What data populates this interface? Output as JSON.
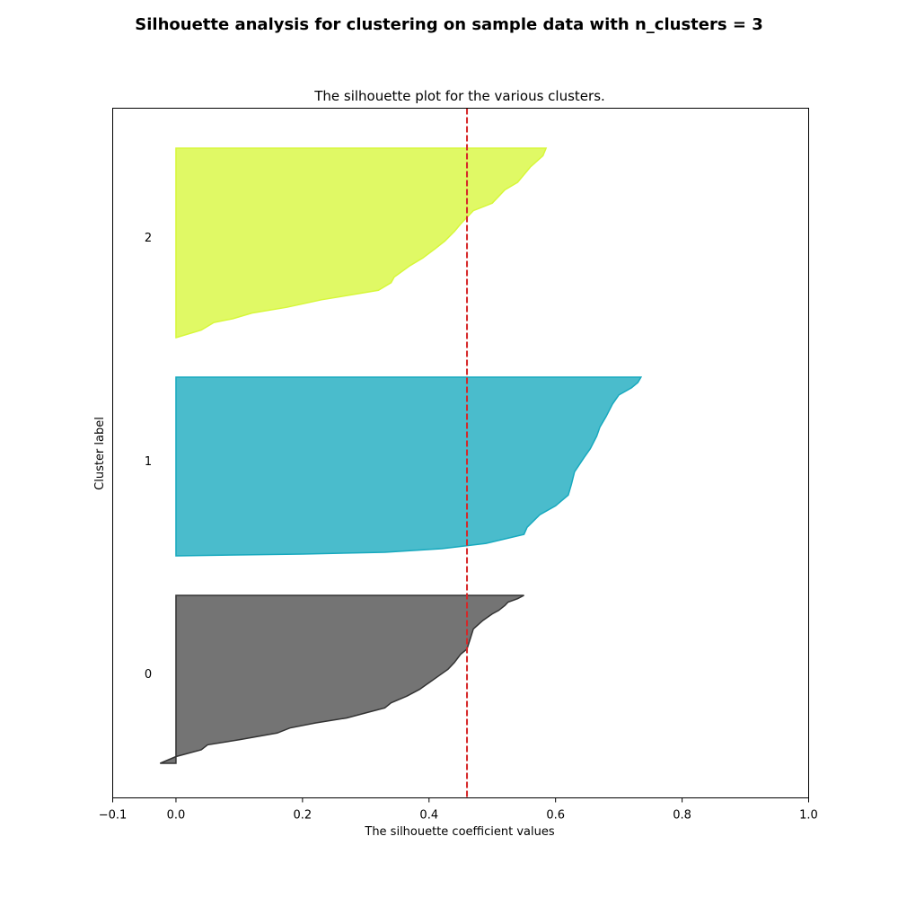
{
  "suptitle": "Silhouette analysis for clustering on sample data with n_clusters = 3",
  "chart_data": {
    "type": "area",
    "title": "The silhouette plot for the various clusters.",
    "xlabel": "The silhouette coefficient values",
    "ylabel": "Cluster label",
    "xlim": [
      -0.1,
      1.0
    ],
    "xticks": [
      -0.1,
      0.0,
      0.2,
      0.4,
      0.6,
      0.8,
      1.0
    ],
    "xtick_labels": [
      "−0.1",
      "0.0",
      "0.2",
      "0.4",
      "0.6",
      "0.8",
      "1.0"
    ],
    "grid": false,
    "average_silhouette_score": 0.46,
    "average_line_color": "#d62728",
    "series": [
      {
        "label": "0",
        "color": "#4d4d4d",
        "edge_color": "#333333",
        "profile": [
          [
            0.0,
            0.55
          ],
          [
            0.02,
            0.54
          ],
          [
            0.04,
            0.525
          ],
          [
            0.06,
            0.52
          ],
          [
            0.09,
            0.51
          ],
          [
            0.11,
            0.5
          ],
          [
            0.15,
            0.485
          ],
          [
            0.2,
            0.47
          ],
          [
            0.26,
            0.465
          ],
          [
            0.32,
            0.46
          ],
          [
            0.35,
            0.45
          ],
          [
            0.4,
            0.44
          ],
          [
            0.44,
            0.43
          ],
          [
            0.48,
            0.415
          ],
          [
            0.52,
            0.4
          ],
          [
            0.56,
            0.385
          ],
          [
            0.6,
            0.365
          ],
          [
            0.64,
            0.34
          ],
          [
            0.67,
            0.33
          ],
          [
            0.7,
            0.3
          ],
          [
            0.73,
            0.27
          ],
          [
            0.76,
            0.22
          ],
          [
            0.79,
            0.18
          ],
          [
            0.82,
            0.16
          ],
          [
            0.86,
            0.1
          ],
          [
            0.89,
            0.05
          ],
          [
            0.92,
            0.04
          ],
          [
            0.96,
            0.0
          ],
          [
            1.0,
            -0.025
          ]
        ]
      },
      {
        "label": "1",
        "color": "#17a9be",
        "edge_color": "#17a9be",
        "profile": [
          [
            0.0,
            0.735
          ],
          [
            0.03,
            0.73
          ],
          [
            0.06,
            0.72
          ],
          [
            0.1,
            0.7
          ],
          [
            0.15,
            0.69
          ],
          [
            0.22,
            0.68
          ],
          [
            0.28,
            0.67
          ],
          [
            0.33,
            0.665
          ],
          [
            0.4,
            0.655
          ],
          [
            0.45,
            0.645
          ],
          [
            0.53,
            0.63
          ],
          [
            0.6,
            0.625
          ],
          [
            0.66,
            0.62
          ],
          [
            0.72,
            0.6
          ],
          [
            0.77,
            0.575
          ],
          [
            0.84,
            0.555
          ],
          [
            0.88,
            0.55
          ],
          [
            0.93,
            0.49
          ],
          [
            0.96,
            0.42
          ],
          [
            0.98,
            0.33
          ],
          [
            0.99,
            0.2
          ],
          [
            1.0,
            0.0
          ]
        ]
      },
      {
        "label": "2",
        "color": "#d7f73a",
        "edge_color": "#d7f73a",
        "profile": [
          [
            0.0,
            0.585
          ],
          [
            0.04,
            0.58
          ],
          [
            0.1,
            0.56
          ],
          [
            0.18,
            0.54
          ],
          [
            0.22,
            0.52
          ],
          [
            0.29,
            0.5
          ],
          [
            0.33,
            0.47
          ],
          [
            0.4,
            0.45
          ],
          [
            0.44,
            0.44
          ],
          [
            0.49,
            0.425
          ],
          [
            0.53,
            0.41
          ],
          [
            0.58,
            0.39
          ],
          [
            0.62,
            0.37
          ],
          [
            0.68,
            0.345
          ],
          [
            0.71,
            0.34
          ],
          [
            0.75,
            0.32
          ],
          [
            0.8,
            0.23
          ],
          [
            0.84,
            0.175
          ],
          [
            0.87,
            0.12
          ],
          [
            0.9,
            0.09
          ],
          [
            0.92,
            0.06
          ],
          [
            0.96,
            0.04
          ],
          [
            1.0,
            0.0
          ]
        ]
      }
    ]
  }
}
